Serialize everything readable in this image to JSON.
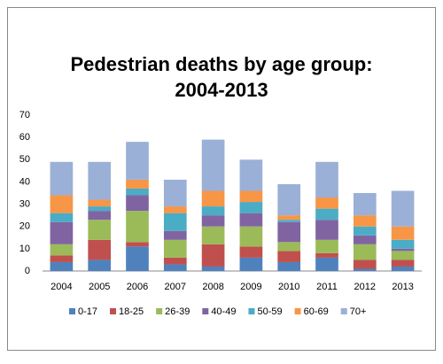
{
  "chart_data": {
    "type": "stacked-bar",
    "title": "Pedestrian deaths by age group: 2004-2013",
    "categories": [
      "2004",
      "2005",
      "2006",
      "2007",
      "2008",
      "2009",
      "2010",
      "2011",
      "2012",
      "2013"
    ],
    "series": [
      {
        "name": "0-17",
        "color": "#4f81bd",
        "values": [
          4,
          5,
          11,
          3,
          2,
          6,
          4,
          6,
          1,
          2
        ]
      },
      {
        "name": "18-25",
        "color": "#c0504d",
        "values": [
          3,
          9,
          2,
          3,
          10,
          5,
          5,
          2,
          4,
          3
        ]
      },
      {
        "name": "26-39",
        "color": "#9bbb59",
        "values": [
          5,
          9,
          14,
          8,
          8,
          9,
          4,
          6,
          7,
          4
        ]
      },
      {
        "name": "40-49",
        "color": "#8064a2",
        "values": [
          10,
          4,
          7,
          4,
          5,
          6,
          9,
          9,
          4,
          1
        ]
      },
      {
        "name": "50-59",
        "color": "#4bacc6",
        "values": [
          4,
          2,
          3,
          8,
          4,
          5,
          1,
          5,
          4,
          4
        ]
      },
      {
        "name": "60-69",
        "color": "#f79646",
        "values": [
          8,
          3,
          4,
          3,
          7,
          5,
          2,
          5,
          5,
          6
        ]
      },
      {
        "name": "70+",
        "color": "#9bb0d6",
        "values": [
          15,
          17,
          17,
          12,
          23,
          14,
          14,
          16,
          10,
          16
        ]
      }
    ],
    "ylim": [
      0,
      70
    ],
    "yticks": [
      0,
      10,
      20,
      30,
      40,
      50,
      60,
      70
    ],
    "grid": false,
    "legend": "bottom"
  }
}
